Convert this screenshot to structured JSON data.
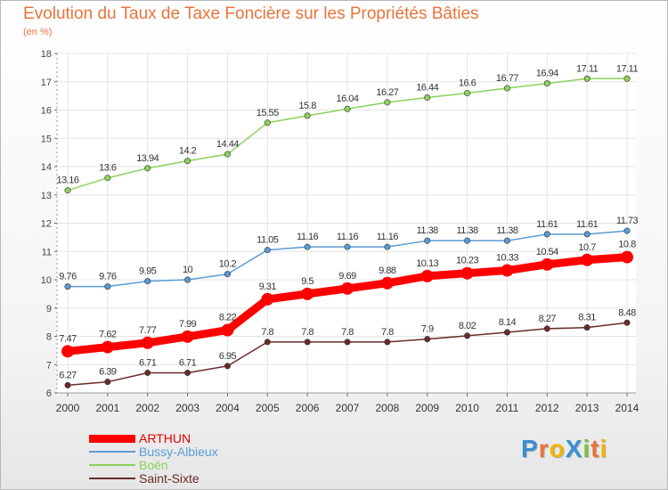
{
  "title": "Evolution du Taux de Taxe Foncière sur les Propriétés Bâties",
  "unit_label": "(en %)",
  "brand": {
    "text": "ProXiti",
    "letters": [
      {
        "ch": "P",
        "color": "#3a8fd3"
      },
      {
        "ch": "r",
        "color": "#e8743b"
      },
      {
        "ch": "o",
        "color": "#f0b400"
      },
      {
        "ch": "X",
        "color": "#3a8fd3"
      },
      {
        "ch": "i",
        "color": "#7cc242"
      },
      {
        "ch": "t",
        "color": "#e8743b"
      },
      {
        "ch": "i",
        "color": "#f0b400"
      }
    ]
  },
  "chart_data": {
    "type": "line",
    "title": "Evolution du Taux de Taxe Foncière sur les Propriétés Bâties",
    "ylabel": "(en %)",
    "xlabel": "",
    "ylim": [
      6,
      18
    ],
    "yticks": [
      6,
      7,
      8,
      9,
      10,
      11,
      12,
      13,
      14,
      15,
      16,
      17,
      18
    ],
    "grid": true,
    "legend_position": "bottom-left",
    "x": [
      "2000",
      "2001",
      "2002",
      "2003",
      "2004",
      "2005",
      "2006",
      "2007",
      "2008",
      "2009",
      "2010",
      "2011",
      "2012",
      "2013",
      "2014"
    ],
    "series": [
      {
        "name": "ARTHUN",
        "color": "#ff0000",
        "emphasis": true,
        "values": [
          7.47,
          7.62,
          7.77,
          7.99,
          8.22,
          9.31,
          9.5,
          9.69,
          9.88,
          10.13,
          10.23,
          10.33,
          10.54,
          10.7,
          10.8
        ]
      },
      {
        "name": "Bussy-Albieux",
        "color": "#5b9bd5",
        "values": [
          9.76,
          9.76,
          9.95,
          10,
          10.2,
          11.05,
          11.16,
          11.16,
          11.16,
          11.38,
          11.38,
          11.38,
          11.61,
          11.61,
          11.73
        ]
      },
      {
        "name": "Boën",
        "color": "#8cd15a",
        "values": [
          13.16,
          13.6,
          13.94,
          14.2,
          14.44,
          15.55,
          15.8,
          16.04,
          16.27,
          16.44,
          16.6,
          16.77,
          16.94,
          17.11,
          17.11
        ]
      },
      {
        "name": "Saint-Sixte",
        "color": "#6b2a2a",
        "values": [
          6.27,
          6.39,
          6.71,
          6.71,
          6.95,
          7.8,
          7.8,
          7.8,
          7.8,
          7.9,
          8.02,
          8.14,
          8.27,
          8.31,
          8.48
        ]
      }
    ]
  }
}
